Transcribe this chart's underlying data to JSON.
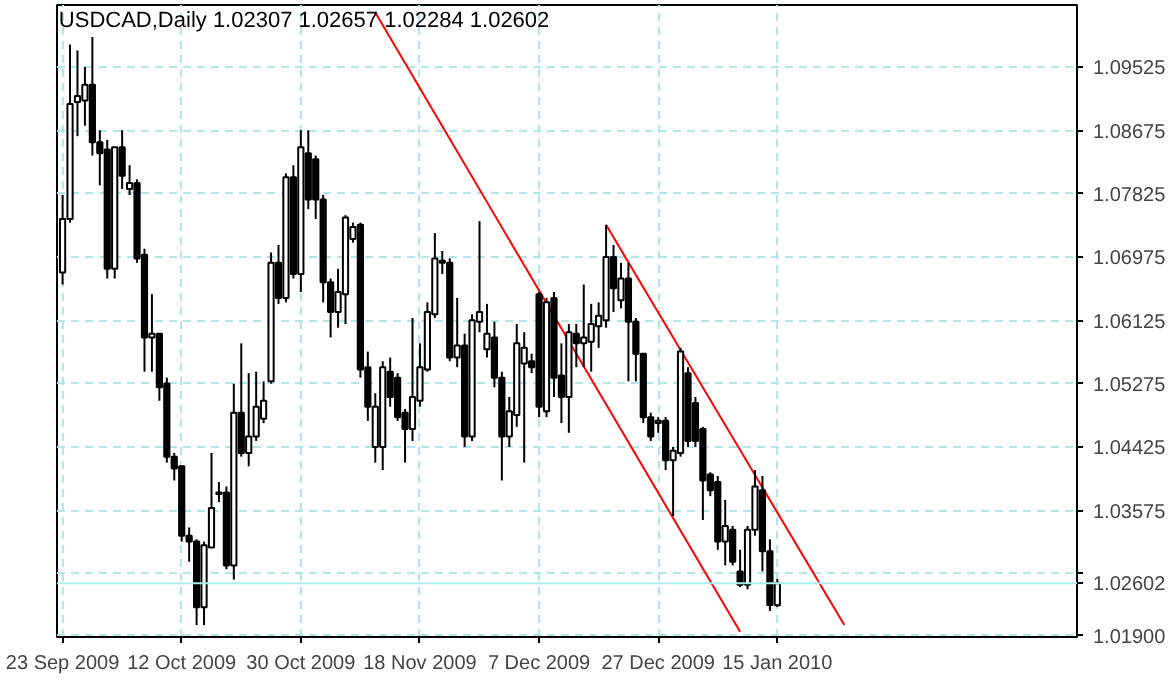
{
  "chart_data": {
    "type": "candlestick",
    "title": "USDCAD,Daily  1.02307 1.02657 1.02284 1.02602",
    "categories": [
      "23 Sep 2009",
      null,
      null,
      null,
      null,
      null,
      null,
      null,
      null,
      null,
      null,
      null,
      null,
      null,
      null,
      null,
      "12 Oct 2009",
      null,
      null,
      null,
      null,
      null,
      null,
      null,
      null,
      null,
      null,
      null,
      null,
      null,
      null,
      null,
      "30 Oct 2009",
      null,
      null,
      null,
      null,
      null,
      null,
      null,
      null,
      null,
      null,
      null,
      null,
      null,
      null,
      null,
      "18 Nov 2009",
      null,
      null,
      null,
      null,
      null,
      null,
      null,
      null,
      null,
      null,
      null,
      null,
      null,
      null,
      null,
      "7 Dec 2009",
      null,
      null,
      null,
      null,
      null,
      null,
      null,
      null,
      null,
      null,
      null,
      null,
      null,
      null,
      null,
      "27 Dec 2009",
      null,
      null,
      null,
      null,
      null,
      null,
      null,
      null,
      null,
      null,
      null,
      null,
      null,
      null,
      null,
      "15 Jan 2010",
      null,
      null,
      null,
      null,
      null,
      null,
      null,
      null,
      null,
      null,
      null,
      null,
      null,
      null,
      null,
      null,
      null,
      null,
      null,
      null,
      null,
      null,
      null,
      null,
      null,
      null,
      null,
      null,
      null,
      null,
      null,
      null,
      null,
      null,
      null,
      null,
      null,
      null,
      null,
      null
    ],
    "ohlc": [
      [
        1.0677,
        1.0781,
        1.0661,
        1.0749
      ],
      [
        1.0749,
        1.0983,
        1.0744,
        1.0903
      ],
      [
        1.0906,
        1.0975,
        1.086,
        1.0914
      ],
      [
        1.0908,
        1.0953,
        1.0874,
        1.0929
      ],
      [
        1.0929,
        1.0993,
        1.0834,
        1.0852
      ],
      [
        1.0852,
        1.0868,
        1.0794,
        1.0837
      ],
      [
        1.0842,
        1.0855,
        1.0669,
        1.0682
      ],
      [
        1.0682,
        1.0845,
        1.0669,
        1.0845
      ],
      [
        1.0845,
        1.0868,
        1.0789,
        1.0807
      ],
      [
        1.0789,
        1.0821,
        1.0781,
        1.0797
      ],
      [
        1.0797,
        1.0802,
        1.069,
        1.0696
      ],
      [
        1.0701,
        1.0709,
        1.0544,
        1.059
      ],
      [
        1.059,
        1.0648,
        1.0544,
        1.0595
      ],
      [
        1.0595,
        1.0595,
        1.0505,
        1.0523
      ],
      [
        1.0528,
        1.0536,
        1.0422,
        1.043
      ],
      [
        1.043,
        1.0435,
        1.0398,
        1.0414
      ],
      [
        1.0417,
        1.0417,
        1.0316,
        1.0324
      ],
      [
        1.0324,
        1.0335,
        1.0289,
        1.0316
      ],
      [
        1.0316,
        1.0319,
        1.0204,
        1.0228
      ],
      [
        1.0228,
        1.0316,
        1.0204,
        1.0311
      ],
      [
        1.0308,
        1.0435,
        1.0308,
        1.0361
      ],
      [
        1.038,
        1.0396,
        1.0369,
        1.0382
      ],
      [
        1.0382,
        1.039,
        1.0279,
        1.0284
      ],
      [
        1.0284,
        1.0528,
        1.0265,
        1.0489
      ],
      [
        1.0489,
        1.0582,
        1.043,
        1.0435
      ],
      [
        1.0435,
        1.0542,
        1.0417,
        1.0457
      ],
      [
        1.0457,
        1.0544,
        1.0451,
        1.0497
      ],
      [
        1.0481,
        1.0531,
        1.0475,
        1.0505
      ],
      [
        1.0531,
        1.0704,
        1.0528,
        1.069
      ],
      [
        1.069,
        1.0714,
        1.0635,
        1.0643
      ],
      [
        1.0643,
        1.081,
        1.0637,
        1.0805
      ],
      [
        1.0805,
        1.0821,
        1.0669,
        1.0675
      ],
      [
        1.0675,
        1.0868,
        1.0651,
        1.0845
      ],
      [
        1.0837,
        1.0868,
        1.0762,
        1.0775
      ],
      [
        1.0829,
        1.0834,
        1.0749,
        1.0775
      ],
      [
        1.0775,
        1.0781,
        1.0637,
        1.0664
      ],
      [
        1.0664,
        1.0669,
        1.059,
        1.0624
      ],
      [
        1.0624,
        1.0682,
        1.0603,
        1.0651
      ],
      [
        1.0648,
        1.0754,
        1.0608,
        1.0751
      ],
      [
        1.0722,
        1.0744,
        1.0717,
        1.0738
      ],
      [
        1.0741,
        1.0744,
        1.0536,
        1.0547
      ],
      [
        1.055,
        1.0571,
        1.0478,
        1.0497
      ],
      [
        1.0443,
        1.0515,
        1.0422,
        1.0497
      ],
      [
        1.0443,
        1.0558,
        1.0412,
        1.055
      ],
      [
        1.0544,
        1.0563,
        1.0497,
        1.051
      ],
      [
        1.0536,
        1.0542,
        1.0478,
        1.0483
      ],
      [
        1.0489,
        1.0494,
        1.0422,
        1.0467
      ],
      [
        1.0467,
        1.0616,
        1.0451,
        1.051
      ],
      [
        1.0505,
        1.0582,
        1.0497,
        1.055
      ],
      [
        1.0547,
        1.0637,
        1.0544,
        1.0624
      ],
      [
        1.0621,
        1.073,
        1.0616,
        1.0696
      ],
      [
        1.069,
        1.0706,
        1.0675,
        1.0693
      ],
      [
        1.069,
        1.0696,
        1.0558,
        1.0563
      ],
      [
        1.0563,
        1.0643,
        1.055,
        1.0579
      ],
      [
        1.0579,
        1.0595,
        1.0443,
        1.0457
      ],
      [
        1.0457,
        1.0621,
        1.0451,
        1.0613
      ],
      [
        1.0611,
        1.0746,
        1.0597,
        1.0624
      ],
      [
        1.0574,
        1.0635,
        1.0563,
        1.0595
      ],
      [
        1.059,
        1.0611,
        1.0523,
        1.0536
      ],
      [
        1.0536,
        1.0544,
        1.0398,
        1.0457
      ],
      [
        1.0457,
        1.051,
        1.0443,
        1.0491
      ],
      [
        1.0486,
        1.0608,
        1.047,
        1.0582
      ],
      [
        1.0555,
        1.0597,
        1.0422,
        1.0576
      ],
      [
        1.0558,
        1.0568,
        1.0542,
        1.055
      ],
      [
        1.0648,
        1.0651,
        1.0483,
        1.0497
      ],
      [
        1.0491,
        1.0643,
        1.0483,
        1.0637
      ],
      [
        1.0643,
        1.0651,
        1.051,
        1.0536
      ],
      [
        1.0539,
        1.0582,
        1.0475,
        1.051
      ],
      [
        1.051,
        1.0608,
        1.0462,
        1.0597
      ],
      [
        1.0595,
        1.0608,
        1.055,
        1.0582
      ],
      [
        1.0582,
        1.0661,
        1.055,
        1.059
      ],
      [
        1.0584,
        1.0635,
        1.0544,
        1.0608
      ],
      [
        1.0605,
        1.0637,
        1.0576,
        1.0619
      ],
      [
        1.0613,
        1.0741,
        1.0603,
        1.0698
      ],
      [
        1.0698,
        1.0714,
        1.0624,
        1.0656
      ],
      [
        1.064,
        1.069,
        1.0629,
        1.0669
      ],
      [
        1.0669,
        1.069,
        1.0531,
        1.0611
      ],
      [
        1.0611,
        1.0616,
        1.0531,
        1.0568
      ],
      [
        1.0568,
        1.0568,
        1.0475,
        1.0483
      ],
      [
        1.0483,
        1.0489,
        1.0451,
        1.0457
      ],
      [
        1.0475,
        1.0483,
        1.0462,
        1.0478
      ],
      [
        1.0478,
        1.0483,
        1.0412,
        1.0425
      ],
      [
        1.0425,
        1.0443,
        1.035,
        1.0438
      ],
      [
        1.0435,
        1.0576,
        1.043,
        1.0571
      ],
      [
        1.0542,
        1.055,
        1.0443,
        1.0451
      ],
      [
        1.0502,
        1.051,
        1.0443,
        1.0451
      ],
      [
        1.0467,
        1.047,
        1.0345,
        1.0398
      ],
      [
        1.0406,
        1.0409,
        1.0377,
        1.0385
      ],
      [
        1.0396,
        1.0404,
        1.0305,
        1.0316
      ],
      [
        1.0316,
        1.0372,
        1.0284,
        1.0337
      ],
      [
        1.0332,
        1.0337,
        1.0284,
        1.0289
      ],
      [
        1.0276,
        1.0305,
        1.0255,
        1.0258
      ],
      [
        1.0258,
        1.0337,
        1.0252,
        1.0332
      ],
      [
        1.0332,
        1.0412,
        1.0324,
        1.039
      ],
      [
        1.0385,
        1.0404,
        1.0276,
        1.0303
      ],
      [
        1.0303,
        1.0319,
        1.0223,
        1.0231
      ],
      [
        1.02307,
        1.02657,
        1.02284,
        1.02602
      ],
      null,
      null,
      null,
      null,
      null,
      null,
      null,
      null,
      null,
      null,
      null,
      null,
      null,
      null,
      null,
      null,
      null,
      null,
      null,
      null,
      null,
      null,
      null,
      null,
      null,
      null,
      null,
      null,
      null,
      null,
      null,
      null,
      null,
      null,
      null,
      null,
      null,
      null,
      null,
      null
    ],
    "series": [
      {
        "type": "line",
        "color": "#ff0000",
        "values": [
          null,
          null,
          null,
          null,
          null,
          null,
          null,
          null,
          null,
          null,
          null,
          null,
          null,
          null,
          null,
          null,
          null,
          null,
          null,
          null,
          null,
          null,
          null,
          null,
          null,
          null,
          null,
          null,
          null,
          null,
          null,
          null,
          null,
          null,
          null,
          null,
          null,
          null,
          null,
          null,
          null,
          null,
          1.1026,
          null,
          null,
          null,
          null,
          null,
          null,
          null,
          null,
          null,
          null,
          null,
          null,
          null,
          null,
          null,
          null,
          null,
          null,
          null,
          null,
          null,
          null,
          null,
          null,
          null,
          null,
          null,
          null,
          null,
          null,
          null,
          null,
          null,
          null,
          null,
          null,
          null,
          null,
          null,
          null,
          null,
          null,
          null,
          null,
          null,
          null,
          null,
          null,
          1.0195,
          null,
          null,
          null,
          null,
          null,
          null,
          null,
          null,
          null,
          null,
          null,
          null,
          null,
          null,
          null,
          null,
          null,
          null,
          null,
          null,
          null,
          null,
          null,
          null,
          null,
          null,
          null,
          null,
          null,
          null,
          null,
          null,
          null,
          null,
          null,
          null,
          null,
          null,
          null,
          null,
          null,
          null,
          null,
          null,
          null
        ]
      },
      {
        "type": "line",
        "color": "#ff0000",
        "values": [
          null,
          null,
          null,
          null,
          null,
          null,
          null,
          null,
          null,
          null,
          null,
          null,
          null,
          null,
          null,
          null,
          null,
          null,
          null,
          null,
          null,
          null,
          null,
          null,
          null,
          null,
          null,
          null,
          null,
          null,
          null,
          null,
          null,
          null,
          null,
          null,
          null,
          null,
          null,
          null,
          null,
          null,
          null,
          null,
          null,
          null,
          null,
          null,
          null,
          null,
          null,
          null,
          null,
          null,
          null,
          null,
          null,
          null,
          null,
          null,
          null,
          null,
          null,
          null,
          null,
          null,
          null,
          null,
          null,
          null,
          null,
          null,
          null,
          1.0741,
          null,
          null,
          null,
          null,
          null,
          null,
          null,
          null,
          null,
          null,
          null,
          null,
          null,
          null,
          null,
          null,
          null,
          null,
          null,
          null,
          null,
          null,
          null,
          null,
          null,
          null,
          null,
          null,
          null,
          null,
          null,
          1.0204,
          null,
          null,
          null,
          null,
          null,
          null,
          null,
          null,
          null,
          null,
          null,
          null,
          null,
          null,
          null,
          null,
          null,
          null,
          null,
          null,
          null,
          null,
          null,
          null,
          null,
          null,
          null,
          null,
          null,
          null,
          null
        ]
      }
    ],
    "ylim": [
      1.0188,
      1.1036
    ],
    "yticks": [
      {
        "value": 1.019,
        "label": "1.01900"
      },
      {
        "value": 1.0275,
        "label": null
      },
      1.03575,
      1.04425,
      1.05275,
      1.06125,
      1.06975,
      1.07825,
      1.08675,
      1.09525
    ],
    "ref_lines": [
      {
        "axis": "y",
        "value": 1.02602,
        "label": "1.02602",
        "color": "#aeeeee"
      }
    ],
    "grid": true
  }
}
